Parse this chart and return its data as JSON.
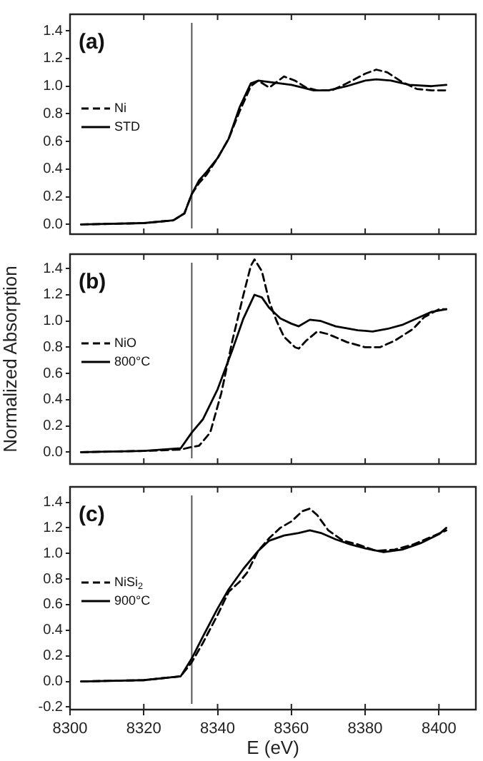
{
  "chart_data": [
    {
      "type": "line",
      "annotations": [
        "(a)"
      ],
      "legend": "left",
      "marker": "none",
      "tick_labels": "y",
      "xlim": [
        8300,
        8410
      ],
      "xticks": [
        {
          "value": 8300,
          "label": null
        },
        {
          "value": 8320,
          "label": null
        },
        {
          "value": 8340,
          "label": null
        },
        {
          "value": 8360,
          "label": null
        },
        {
          "value": 8380,
          "label": null
        },
        {
          "value": 8400,
          "label": null
        }
      ],
      "ylim": [
        -0.07,
        1.52
      ],
      "yticks": [
        {
          "value": 0,
          "label": "0.0"
        },
        {
          "value": 0.2,
          "label": "0.2"
        },
        {
          "value": 0.4,
          "label": "0.4"
        },
        {
          "value": 0.6,
          "label": "0.6"
        },
        {
          "value": 0.8,
          "label": "0.8"
        },
        {
          "value": 1,
          "label": "1.0"
        },
        {
          "value": 1.2,
          "label": "1.2"
        },
        {
          "value": 1.4,
          "label": "1.4"
        }
      ],
      "ref_lines": [
        {
          "axis": "x",
          "value": 8333,
          "label": null,
          "color": "#555555"
        }
      ],
      "series": [
        {
          "name": "Ni",
          "color": "#000000",
          "line_style": "dashed",
          "x": [
            8303,
            8320,
            8328,
            8331,
            8333,
            8335,
            8337,
            8340,
            8343,
            8346,
            8349,
            8351,
            8354,
            8356,
            8358,
            8361,
            8364,
            8367,
            8371,
            8375,
            8380,
            8383,
            8386,
            8390,
            8394,
            8398,
            8402
          ],
          "values": [
            0,
            0.01,
            0.03,
            0.08,
            0.22,
            0.3,
            0.36,
            0.48,
            0.62,
            0.82,
            1.0,
            1.04,
            0.99,
            1.03,
            1.07,
            1.04,
            0.99,
            0.97,
            0.97,
            1.02,
            1.09,
            1.12,
            1.1,
            1.03,
            0.98,
            0.97,
            0.97
          ]
        },
        {
          "name": "STD",
          "color": "#000000",
          "line_style": "solid",
          "x": [
            8303,
            8320,
            8328,
            8331,
            8333,
            8335,
            8337,
            8340,
            8343,
            8346,
            8349,
            8351,
            8354,
            8357,
            8360,
            8363,
            8366,
            8370,
            8375,
            8380,
            8383,
            8387,
            8392,
            8398,
            8402
          ],
          "values": [
            0,
            0.01,
            0.03,
            0.08,
            0.22,
            0.32,
            0.38,
            0.48,
            0.62,
            0.85,
            1.02,
            1.04,
            1.03,
            1.02,
            1.01,
            0.99,
            0.97,
            0.97,
            1.0,
            1.04,
            1.05,
            1.04,
            1.01,
            1.0,
            1.01
          ]
        }
      ]
    },
    {
      "type": "line",
      "annotations": [
        "(b)"
      ],
      "ylabel": "Normalized Absorption",
      "legend": "left",
      "marker": "none",
      "tick_labels": "y",
      "xlim": [
        8300,
        8410
      ],
      "xticks": [
        {
          "value": 8300,
          "label": null
        },
        {
          "value": 8320,
          "label": null
        },
        {
          "value": 8340,
          "label": null
        },
        {
          "value": 8360,
          "label": null
        },
        {
          "value": 8380,
          "label": null
        },
        {
          "value": 8400,
          "label": null
        }
      ],
      "ylim": [
        -0.09,
        1.51
      ],
      "yticks": [
        {
          "value": 0,
          "label": "0.0"
        },
        {
          "value": 0.2,
          "label": "0.2"
        },
        {
          "value": 0.4,
          "label": "0.4"
        },
        {
          "value": 0.6,
          "label": "0.6"
        },
        {
          "value": 0.8,
          "label": "0.8"
        },
        {
          "value": 1,
          "label": "1.0"
        },
        {
          "value": 1.2,
          "label": "1.2"
        },
        {
          "value": 1.4,
          "label": "1.4"
        }
      ],
      "ref_lines": [
        {
          "axis": "x",
          "value": 8333,
          "label": null,
          "color": "#555555"
        }
      ],
      "series": [
        {
          "name": "NiO",
          "color": "#000000",
          "line_style": "dashed",
          "x": [
            8303,
            8320,
            8330,
            8333,
            8335,
            8338,
            8341,
            8344,
            8347,
            8349,
            8350,
            8352,
            8354,
            8356,
            8358,
            8361,
            8362,
            8364,
            8367,
            8370,
            8375,
            8380,
            8384,
            8388,
            8393,
            8396,
            8400,
            8402
          ],
          "values": [
            0,
            0.01,
            0.02,
            0.04,
            0.05,
            0.15,
            0.45,
            0.85,
            1.2,
            1.42,
            1.47,
            1.38,
            1.15,
            1.0,
            0.88,
            0.8,
            0.79,
            0.85,
            0.92,
            0.9,
            0.84,
            0.8,
            0.8,
            0.85,
            0.94,
            1.03,
            1.09,
            1.09
          ]
        },
        {
          "name": "800°C",
          "color": "#000000",
          "line_style": "solid",
          "x": [
            8303,
            8320,
            8330,
            8333,
            8336,
            8340,
            8344,
            8347,
            8350,
            8352,
            8354,
            8357,
            8360,
            8362,
            8365,
            8368,
            8372,
            8378,
            8382,
            8386,
            8390,
            8394,
            8398,
            8402
          ],
          "values": [
            0,
            0.01,
            0.03,
            0.15,
            0.25,
            0.48,
            0.78,
            1.02,
            1.2,
            1.18,
            1.1,
            1.02,
            0.98,
            0.96,
            1.01,
            1.0,
            0.96,
            0.93,
            0.92,
            0.94,
            0.97,
            1.02,
            1.07,
            1.09
          ]
        }
      ]
    },
    {
      "type": "line",
      "annotations": [
        "(c)"
      ],
      "xlabel": "E (eV)",
      "legend": "left",
      "marker": "none",
      "xlim": [
        8300,
        8410
      ],
      "xticks": [
        8300,
        8320,
        8340,
        8360,
        8380,
        8400
      ],
      "ylim": [
        -0.22,
        1.52
      ],
      "yticks": [
        {
          "value": -0.2,
          "label": "-0.2"
        },
        {
          "value": 0,
          "label": "0.0"
        },
        {
          "value": 0.2,
          "label": "0.2"
        },
        {
          "value": 0.4,
          "label": "0.4"
        },
        {
          "value": 0.6,
          "label": "0.6"
        },
        {
          "value": 0.8,
          "label": "0.8"
        },
        {
          "value": 1,
          "label": "1.0"
        },
        {
          "value": 1.2,
          "label": "1.2"
        },
        {
          "value": 1.4,
          "label": "1.4"
        }
      ],
      "ref_lines": [
        {
          "axis": "x",
          "value": 8333,
          "label": null,
          "color": "#555555"
        }
      ],
      "series": [
        {
          "name": "NiSi$_{2}$",
          "color": "#000000",
          "line_style": "dashed",
          "x": [
            8303,
            8320,
            8330,
            8333,
            8336,
            8340,
            8343,
            8346,
            8348,
            8351,
            8354,
            8357,
            8360,
            8363,
            8365,
            8367,
            8370,
            8374,
            8378,
            8383,
            8388,
            8393,
            8398,
            8402
          ],
          "values": [
            0,
            0.01,
            0.04,
            0.15,
            0.3,
            0.52,
            0.7,
            0.78,
            0.85,
            1.02,
            1.12,
            1.2,
            1.25,
            1.33,
            1.35,
            1.3,
            1.18,
            1.1,
            1.07,
            1.02,
            1.03,
            1.07,
            1.13,
            1.18
          ]
        },
        {
          "name": "900°C",
          "color": "#000000",
          "line_style": "solid",
          "x": [
            8303,
            8320,
            8330,
            8333,
            8336,
            8340,
            8343,
            8347,
            8351,
            8354,
            8358,
            8362,
            8365,
            8368,
            8372,
            8376,
            8380,
            8385,
            8390,
            8395,
            8400,
            8402
          ],
          "values": [
            0,
            0.01,
            0.04,
            0.18,
            0.35,
            0.57,
            0.72,
            0.88,
            1.02,
            1.1,
            1.14,
            1.16,
            1.18,
            1.16,
            1.11,
            1.07,
            1.04,
            1.01,
            1.03,
            1.08,
            1.15,
            1.2
          ]
        }
      ]
    }
  ]
}
